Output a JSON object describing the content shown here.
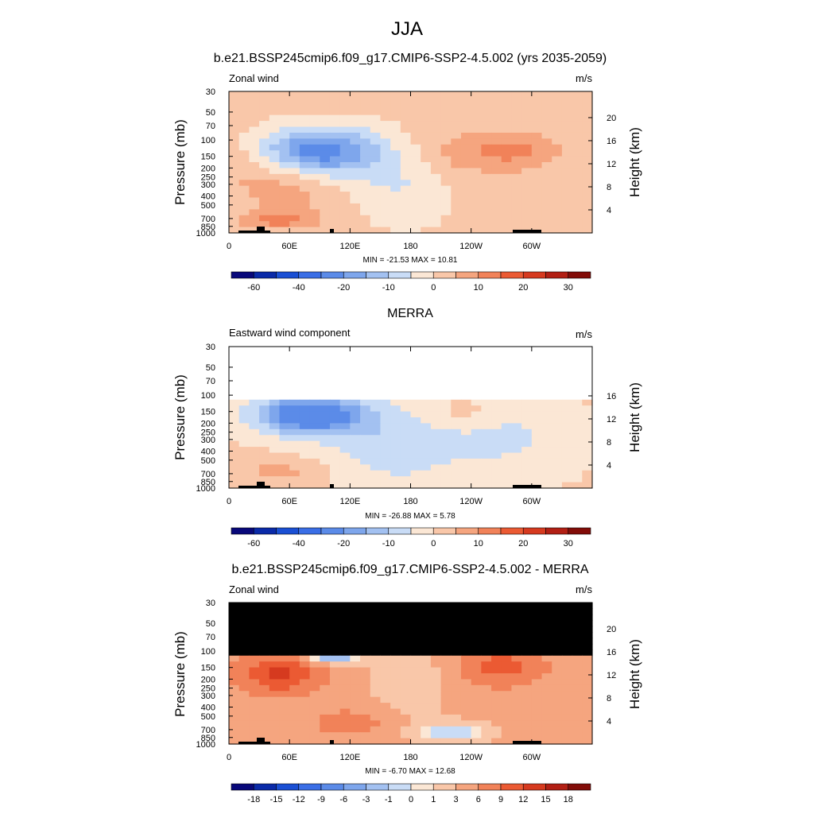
{
  "figure": {
    "season": "JJA"
  },
  "chart_data": [
    {
      "type": "heatmap",
      "title": "b.e21.BSSP245cmip6.f09_g17.CMIP6-SSP2-4.5.002 (yrs 2035-2059)",
      "left_label": "Zonal wind",
      "units": "m/s",
      "ylabel": "Pressure (mb)",
      "ylabel_right": "Height (km)",
      "xticks": [
        "0",
        "60E",
        "120E",
        "180",
        "120W",
        "60W"
      ],
      "yticks": [
        "30",
        "50",
        "70",
        "100",
        "150",
        "200",
        "250",
        "300",
        "400",
        "500",
        "700",
        "850",
        "1000"
      ],
      "height_ticks": [
        "20",
        "16",
        "12",
        "8",
        "4"
      ],
      "stats": "MIN = -21.53  MAX =  10.81",
      "colorbar_labels": [
        "-60",
        "-40",
        "-20",
        "-10",
        "0",
        "10",
        "20",
        "30"
      ],
      "colorbar_levels": [
        -70,
        -60,
        -50,
        -40,
        -30,
        -20,
        -15,
        -10,
        -5,
        0,
        5,
        10,
        15,
        20,
        25,
        30,
        35
      ]
    },
    {
      "type": "heatmap",
      "title": "MERRA",
      "left_label": "Eastward wind component",
      "units": "m/s",
      "ylabel": "Pressure (mb)",
      "ylabel_right": "Height (km)",
      "xticks": [
        "0",
        "60E",
        "120E",
        "180",
        "120W",
        "60W"
      ],
      "yticks": [
        "30",
        "50",
        "70",
        "100",
        "150",
        "200",
        "250",
        "300",
        "400",
        "500",
        "700",
        "850",
        "1000"
      ],
      "height_ticks": [
        "16",
        "12",
        "8",
        "4"
      ],
      "stats": "MIN = -26.88  MAX =   5.78",
      "colorbar_labels": [
        "-60",
        "-40",
        "-20",
        "-10",
        "0",
        "10",
        "20",
        "30"
      ],
      "colorbar_levels": [
        -70,
        -60,
        -50,
        -40,
        -30,
        -20,
        -15,
        -10,
        -5,
        0,
        5,
        10,
        15,
        20,
        25,
        30,
        35
      ]
    },
    {
      "type": "heatmap",
      "title": "b.e21.BSSP245cmip6.f09_g17.CMIP6-SSP2-4.5.002 - MERRA",
      "left_label": "Zonal wind",
      "units": "m/s",
      "ylabel": "Pressure (mb)",
      "ylabel_right": "Height (km)",
      "xticks": [
        "0",
        "60E",
        "120E",
        "180",
        "120W",
        "60W"
      ],
      "yticks": [
        "30",
        "50",
        "70",
        "100",
        "150",
        "200",
        "250",
        "300",
        "400",
        "500",
        "700",
        "850",
        "1000"
      ],
      "height_ticks": [
        "20",
        "16",
        "12",
        "8",
        "4"
      ],
      "stats": "MIN =  -6.70  MAX =  12.68",
      "colorbar_labels": [
        "-18",
        "-15",
        "-12",
        "-9",
        "-6",
        "-3",
        "-1",
        "0",
        "1",
        "3",
        "6",
        "9",
        "12",
        "15",
        "18"
      ],
      "colorbar_levels": [
        -21,
        -18,
        -15,
        -12,
        -9,
        -6,
        -3,
        -1,
        0,
        1,
        3,
        6,
        9,
        12,
        15,
        18,
        21
      ]
    }
  ],
  "colors": {
    "palette": [
      "#08087a",
      "#0a2aa8",
      "#1a4fd4",
      "#3a6ee6",
      "#5b8be8",
      "#7ea6ec",
      "#a3c1f1",
      "#c9dcf6",
      "#fbe7d5",
      "#f9c7a9",
      "#f5a57f",
      "#f18259",
      "#eb5a33",
      "#d63a1f",
      "#b21f14",
      "#820c08"
    ],
    "mask": "#000000",
    "axis": "#000000"
  }
}
